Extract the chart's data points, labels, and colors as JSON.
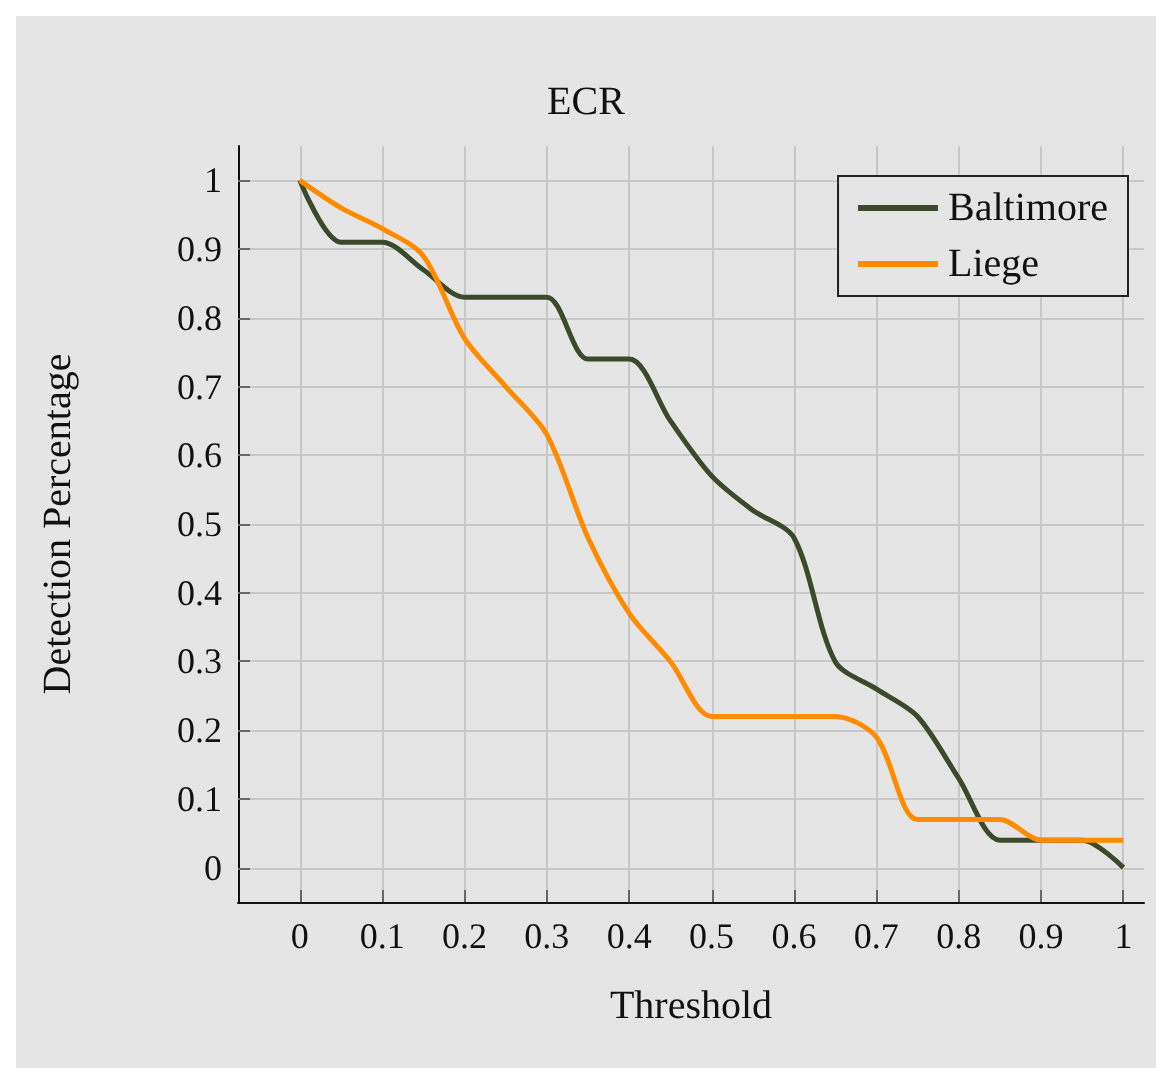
{
  "chart_data": {
    "type": "line",
    "title": "ECR",
    "xlabel": "Threshold",
    "ylabel": "Detection Percentage",
    "x": [
      0,
      0.05,
      0.1,
      0.15,
      0.2,
      0.25,
      0.3,
      0.35,
      0.4,
      0.45,
      0.5,
      0.55,
      0.6,
      0.65,
      0.7,
      0.75,
      0.8,
      0.85,
      0.9,
      0.95,
      1
    ],
    "series": [
      {
        "name": "Baltimore",
        "color": "#3b4a2b",
        "values": [
          1,
          0.91,
          0.91,
          0.87,
          0.83,
          0.83,
          0.83,
          0.74,
          0.74,
          0.65,
          0.57,
          0.52,
          0.48,
          0.3,
          0.26,
          0.22,
          0.13,
          0.04,
          0.04,
          0.04,
          0
        ]
      },
      {
        "name": "Liege",
        "color": "#ff8c00",
        "values": [
          1,
          0.96,
          0.93,
          0.89,
          0.77,
          0.7,
          0.63,
          0.48,
          0.37,
          0.3,
          0.22,
          0.22,
          0.22,
          0.22,
          0.19,
          0.07,
          0.07,
          0.07,
          0.04,
          0.04,
          0.04
        ]
      }
    ],
    "xlim": [
      -0.075,
      1.025
    ],
    "ylim": [
      -0.05,
      1.05
    ],
    "xticks": [
      0,
      0.1,
      0.2,
      0.3,
      0.4,
      0.5,
      0.6,
      0.7,
      0.8,
      0.9,
      1
    ],
    "yticks": [
      0,
      0.1,
      0.2,
      0.3,
      0.4,
      0.5,
      0.6,
      0.7,
      0.8,
      0.9,
      1
    ],
    "grid": true,
    "legend": "top right",
    "marker": "none",
    "line_style": "solid"
  }
}
